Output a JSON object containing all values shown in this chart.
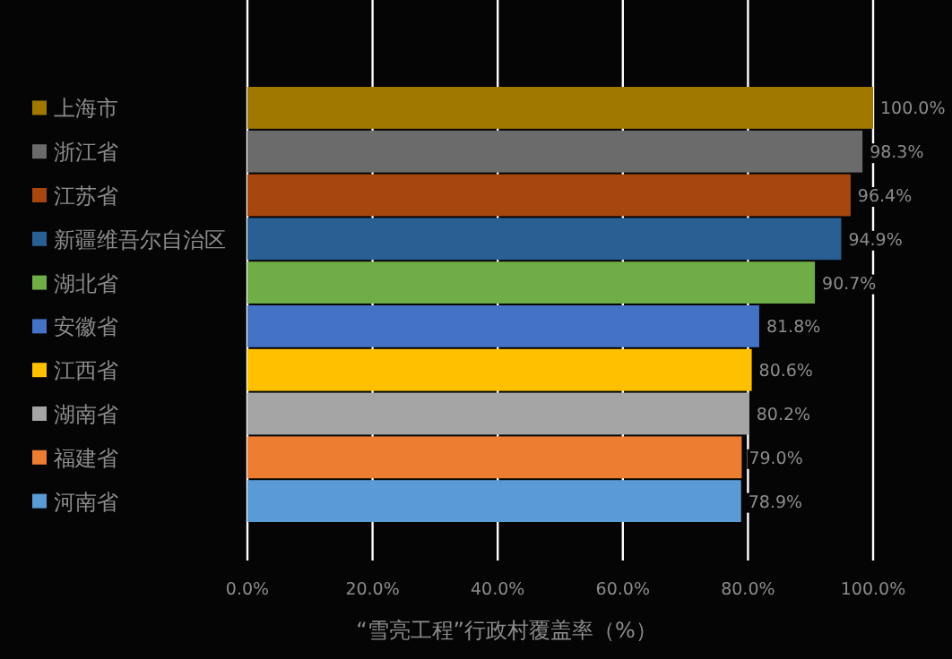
{
  "chart_data": {
    "type": "bar",
    "orientation": "horizontal",
    "xlabel": "“雪亮工程”行政村覆盖率（%）",
    "categories": [
      null,
      null,
      null,
      null,
      null,
      null,
      null,
      null,
      null,
      null
    ],
    "series": [
      {
        "name": "上海市",
        "color": "#a07800",
        "values": [
          100.0,
          null,
          null,
          null,
          null,
          null,
          null,
          null,
          null,
          null
        ],
        "value_labels": [
          "100.0%",
          null,
          null,
          null,
          null,
          null,
          null,
          null,
          null,
          null
        ]
      },
      {
        "name": "浙江省",
        "color": "#6b6b6b",
        "values": [
          null,
          98.3,
          null,
          null,
          null,
          null,
          null,
          null,
          null,
          null
        ],
        "value_labels": [
          null,
          "98.3%",
          null,
          null,
          null,
          null,
          null,
          null,
          null,
          null
        ]
      },
      {
        "name": "江苏省",
        "color": "#a8460f",
        "values": [
          null,
          null,
          96.4,
          null,
          null,
          null,
          null,
          null,
          null,
          null
        ],
        "value_labels": [
          null,
          null,
          "96.4%",
          null,
          null,
          null,
          null,
          null,
          null,
          null
        ]
      },
      {
        "name": "新疆维吾尔自治区",
        "color": "#2a5f94",
        "values": [
          null,
          null,
          null,
          94.9,
          null,
          null,
          null,
          null,
          null,
          null
        ],
        "value_labels": [
          null,
          null,
          null,
          "94.9%",
          null,
          null,
          null,
          null,
          null,
          null
        ]
      },
      {
        "name": "湖北省",
        "color": "#6fae46",
        "values": [
          null,
          null,
          null,
          null,
          90.7,
          null,
          null,
          null,
          null,
          null
        ],
        "value_labels": [
          null,
          null,
          null,
          null,
          "90.7%",
          null,
          null,
          null,
          null,
          null
        ]
      },
      {
        "name": "安徽省",
        "color": "#4472c4",
        "values": [
          null,
          null,
          null,
          null,
          null,
          81.8,
          null,
          null,
          null,
          null
        ],
        "value_labels": [
          null,
          null,
          null,
          null,
          null,
          "81.8%",
          null,
          null,
          null,
          null
        ]
      },
      {
        "name": "江西省",
        "color": "#ffc000",
        "values": [
          null,
          null,
          null,
          null,
          null,
          null,
          80.6,
          null,
          null,
          null
        ],
        "value_labels": [
          null,
          null,
          null,
          null,
          null,
          null,
          "80.6%",
          null,
          null,
          null
        ]
      },
      {
        "name": "湖南省",
        "color": "#a5a5a5",
        "values": [
          null,
          null,
          null,
          null,
          null,
          null,
          null,
          80.2,
          null,
          null
        ],
        "value_labels": [
          null,
          null,
          null,
          null,
          null,
          null,
          null,
          "80.2%",
          null,
          null
        ]
      },
      {
        "name": "福建省",
        "color": "#ed7d31",
        "values": [
          null,
          null,
          null,
          null,
          null,
          null,
          null,
          null,
          79.0,
          null
        ],
        "value_labels": [
          null,
          null,
          null,
          null,
          null,
          null,
          null,
          null,
          "79.0%",
          null
        ]
      },
      {
        "name": "河南省",
        "color": "#5b9bd5",
        "values": [
          null,
          null,
          null,
          null,
          null,
          null,
          null,
          null,
          null,
          78.9
        ],
        "value_labels": [
          null,
          null,
          null,
          null,
          null,
          null,
          null,
          null,
          null,
          "78.9%"
        ]
      }
    ],
    "xlim": [
      0,
      100
    ],
    "xticks": [
      {
        "value": 0,
        "label": "0.0%"
      },
      {
        "value": 20,
        "label": "20.0%"
      },
      {
        "value": 40,
        "label": "40.0%"
      },
      {
        "value": 60,
        "label": "60.0%"
      },
      {
        "value": 80,
        "label": "80.0%"
      },
      {
        "value": 100,
        "label": "100.0%"
      }
    ],
    "stacked": true,
    "grid": "x",
    "legend": "left",
    "tick_labels": "x"
  }
}
